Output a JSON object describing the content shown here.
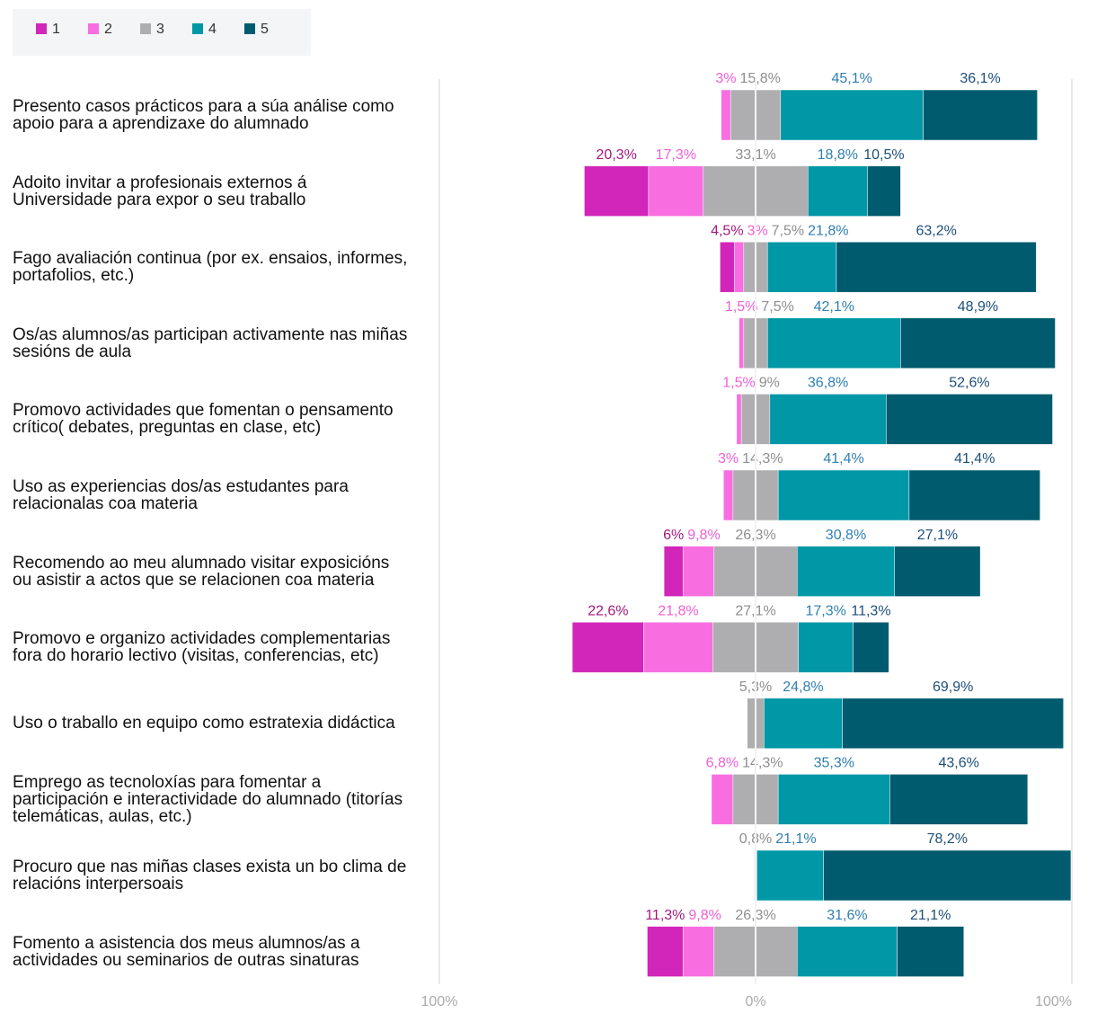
{
  "chart_data": {
    "type": "diverging_stacked_bar",
    "categories": [
      "Presento casos prácticos para a súa análise como apoio para a aprendizaxe do alumnado",
      "Adoito invitar a profesionais externos á Universidade para expor o seu traballo",
      "Fago avaliación continua (por ex. ensaios, informes, portafolios, etc.)",
      "Os/as alumnos/as participan activamente nas miñas sesións de aula",
      "Promovo actividades que fomentan o pensamento crítico( debates, preguntas en clase, etc)",
      "Uso as experiencias dos/as estudantes para relacionalas coa materia",
      "Recomendo ao meu alumnado visitar exposicións ou asistir a actos que se relacionen coa materia",
      "Promovo e organizo actividades complementarias fora do horario lectivo (visitas, conferencias, etc)",
      "Uso o traballo en equipo como estratexia didáctica",
      "Emprego as tecnoloxías para fomentar a participación e interactividade do alumnado (titorías telemáticas, aulas, etc.)",
      "Procuro que nas miñas clases exista un bo clima de relacións interpersoais",
      "Fomento a asistencia dos meus alumnos/as a actividades ou seminarios de outras sinaturas"
    ],
    "series": [
      {
        "name": "1",
        "color": "#d126b9",
        "label_color": "#a3197f",
        "values": [
          null,
          20.3,
          4.5,
          null,
          null,
          null,
          6,
          22.6,
          null,
          null,
          null,
          11.3
        ],
        "value_labels": [
          null,
          "20,3%",
          "4,5%",
          null,
          null,
          null,
          "6%",
          "22,6%",
          null,
          null,
          null,
          "11,3%"
        ]
      },
      {
        "name": "2",
        "color": "#f86ee0",
        "label_color": "#f060d6",
        "values": [
          3,
          17.3,
          3,
          1.5,
          1.5,
          3,
          9.8,
          21.8,
          null,
          6.8,
          null,
          9.8
        ],
        "value_labels": [
          "3%",
          "17,3%",
          "3%",
          "1,5%",
          "1,5%",
          "3%",
          "9,8%",
          "21,8%",
          null,
          "6,8%",
          null,
          "9,8%"
        ]
      },
      {
        "name": "3",
        "color": "#aeaeb0",
        "label_color": "#8e8e90",
        "values": [
          15.8,
          33.1,
          7.5,
          7.5,
          9,
          14.3,
          26.3,
          27.1,
          5.3,
          14.3,
          0.8,
          26.3
        ],
        "value_labels": [
          "15,8%",
          "33,1%",
          "7,5%",
          "7,5%",
          "9%",
          "14,3%",
          "26,3%",
          "27,1%",
          "5,3%",
          "14,3%",
          "0,8%",
          "26,3%"
        ]
      },
      {
        "name": "4",
        "color": "#0097a7",
        "label_color": "#2f7fb0",
        "values": [
          45.1,
          18.8,
          21.8,
          42.1,
          36.8,
          41.4,
          30.8,
          17.3,
          24.8,
          35.3,
          21.1,
          31.6
        ],
        "value_labels": [
          "45,1%",
          "18,8%",
          "21,8%",
          "42,1%",
          "36,8%",
          "41,4%",
          "30,8%",
          "17,3%",
          "24,8%",
          "35,3%",
          "21,1%",
          "31,6%"
        ]
      },
      {
        "name": "5",
        "color": "#005b6e",
        "label_color": "#1d4f7a",
        "values": [
          36.1,
          10.5,
          63.2,
          48.9,
          52.6,
          41.4,
          27.1,
          11.3,
          69.9,
          43.6,
          78.2,
          21.1
        ],
        "value_labels": [
          "36,1%",
          "10,5%",
          "63,2%",
          "48,9%",
          "52,6%",
          "41,4%",
          "27,1%",
          "11,3%",
          "69,9%",
          "43,6%",
          "78,2%",
          "21,1%"
        ]
      }
    ],
    "xlim": [
      -100,
      100
    ],
    "xticks": [
      {
        "value": -100,
        "label": "100%"
      },
      {
        "value": 0,
        "label": "0%"
      },
      {
        "value": 100,
        "label": "100%"
      }
    ],
    "grid": true,
    "legend": "top-left"
  }
}
